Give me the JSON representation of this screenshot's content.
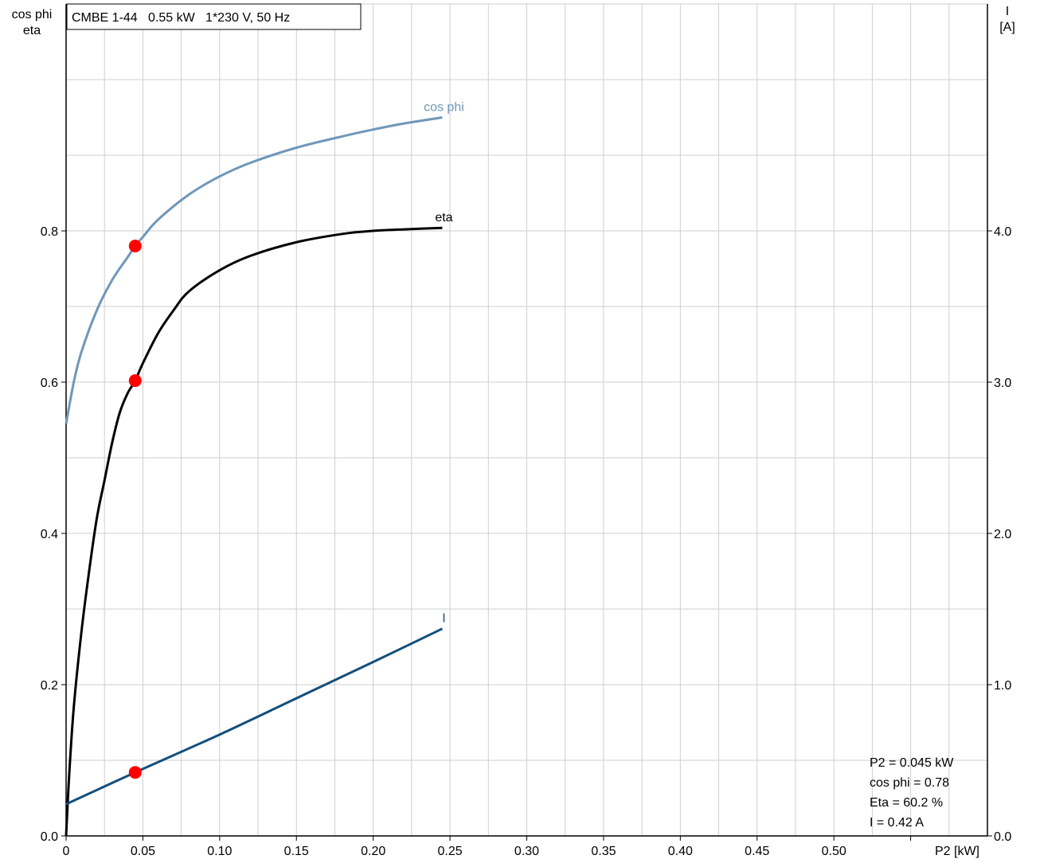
{
  "chart_data": {
    "type": "line",
    "title": "CMBE 1-44   0.55 kW   1*230 V, 50 Hz",
    "xlabel": "P2 [kW]",
    "ylabel_left": [
      "cos phi",
      "eta"
    ],
    "ylabel_right": [
      "I",
      "[A]"
    ],
    "xlim": [
      0,
      0.6
    ],
    "ylim_left": [
      0,
      1.1
    ],
    "ylim_right": [
      0,
      5.5
    ],
    "grid": true,
    "x_ticks": [
      "0",
      "0.05",
      "0.10",
      "0.15",
      "0.20",
      "0.25",
      "0.30",
      "0.35",
      "0.40",
      "0.45",
      "0.50"
    ],
    "y_left_ticks": [
      "0.0",
      "0.2",
      "0.4",
      "0.6",
      "0.8"
    ],
    "y_right_ticks": [
      "0.0",
      "1.0",
      "2.0",
      "3.0",
      "4.0"
    ],
    "series": [
      {
        "name": "cos phi",
        "axis": "left",
        "color": "#6f97b9",
        "x": [
          0,
          0.005,
          0.01,
          0.02,
          0.03,
          0.04,
          0.045,
          0.05,
          0.06,
          0.08,
          0.1,
          0.12,
          0.15,
          0.18,
          0.2,
          0.22,
          0.245
        ],
        "y": [
          0.545,
          0.6,
          0.64,
          0.695,
          0.735,
          0.765,
          0.78,
          0.792,
          0.815,
          0.848,
          0.872,
          0.89,
          0.91,
          0.925,
          0.934,
          0.942,
          0.95
        ]
      },
      {
        "name": "eta",
        "axis": "left",
        "color": "#000000",
        "x": [
          0,
          0.002,
          0.005,
          0.01,
          0.015,
          0.02,
          0.025,
          0.03,
          0.035,
          0.04,
          0.045,
          0.05,
          0.06,
          0.07,
          0.08,
          0.1,
          0.12,
          0.15,
          0.18,
          0.2,
          0.22,
          0.245
        ],
        "y": [
          0,
          0.08,
          0.17,
          0.27,
          0.35,
          0.42,
          0.47,
          0.52,
          0.56,
          0.585,
          0.602,
          0.625,
          0.665,
          0.695,
          0.72,
          0.748,
          0.767,
          0.785,
          0.796,
          0.8,
          0.802,
          0.804
        ]
      },
      {
        "name": "I",
        "axis": "right",
        "color": "#134f7c",
        "x": [
          0,
          0.045,
          0.1,
          0.15,
          0.2,
          0.245
        ],
        "y": [
          0.21,
          0.42,
          0.67,
          0.91,
          1.15,
          1.37
        ]
      }
    ],
    "operating_point": {
      "x": 0.045,
      "cos_phi": 0.78,
      "eta": 0.602,
      "I": 0.42
    },
    "readout": [
      "P2 = 0.045 kW",
      "cos phi = 0.78",
      "Eta = 60.2 %",
      "I = 0.42 A"
    ]
  }
}
